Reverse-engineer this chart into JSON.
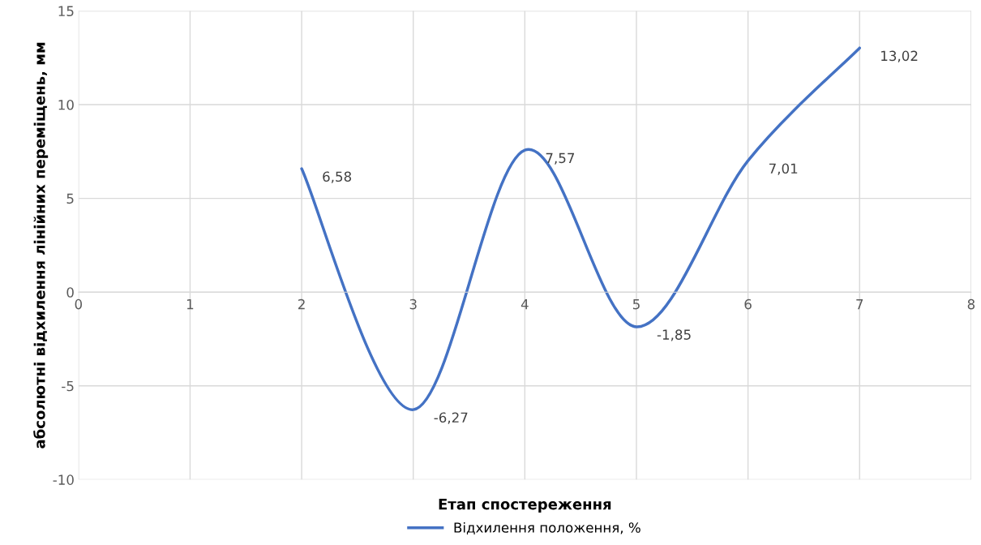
{
  "chart_data": {
    "type": "line",
    "xlabel": "Етап спостереження",
    "ylabel": "абсолютні відхилення лінійних переміщень, мм",
    "series": [
      {
        "name": "Відхилення положення, %",
        "color": "#4472c4",
        "x": [
          2,
          3,
          4,
          5,
          6,
          7
        ],
        "values": [
          6.58,
          -6.27,
          7.57,
          -1.85,
          7.01,
          13.02
        ],
        "value_labels": [
          "6,58",
          "-6,27",
          "7,57",
          "-1,85",
          "7,01",
          "13,02"
        ]
      }
    ],
    "xlim": [
      0,
      8
    ],
    "xticks": [
      0,
      1,
      2,
      3,
      4,
      5,
      6,
      7,
      8
    ],
    "ylim": [
      -10,
      15
    ],
    "yticks": [
      -10,
      -5,
      0,
      5,
      10,
      15
    ],
    "grid": true,
    "legend": "bottom",
    "marker": "none",
    "line_style": "solid"
  }
}
